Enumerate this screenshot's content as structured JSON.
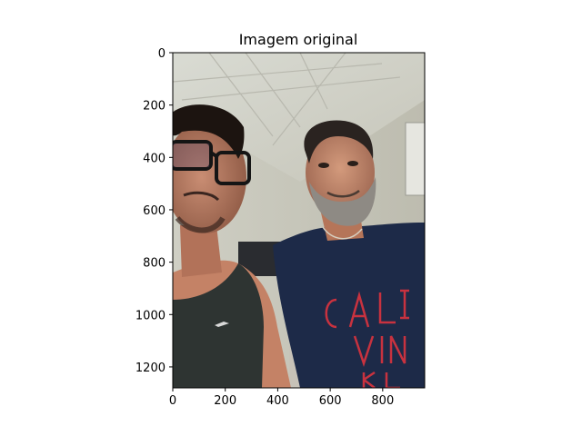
{
  "figure": {
    "title": "Imagem original",
    "image_description_icon": "photo-selfie-two-men-office",
    "x_axis": {
      "range": [
        0,
        960
      ],
      "ticks": [
        0,
        200,
        400,
        600,
        800
      ]
    },
    "y_axis": {
      "range": [
        0,
        1280
      ],
      "inverted": true,
      "ticks": [
        0,
        200,
        400,
        600,
        800,
        1000,
        1200
      ]
    }
  }
}
